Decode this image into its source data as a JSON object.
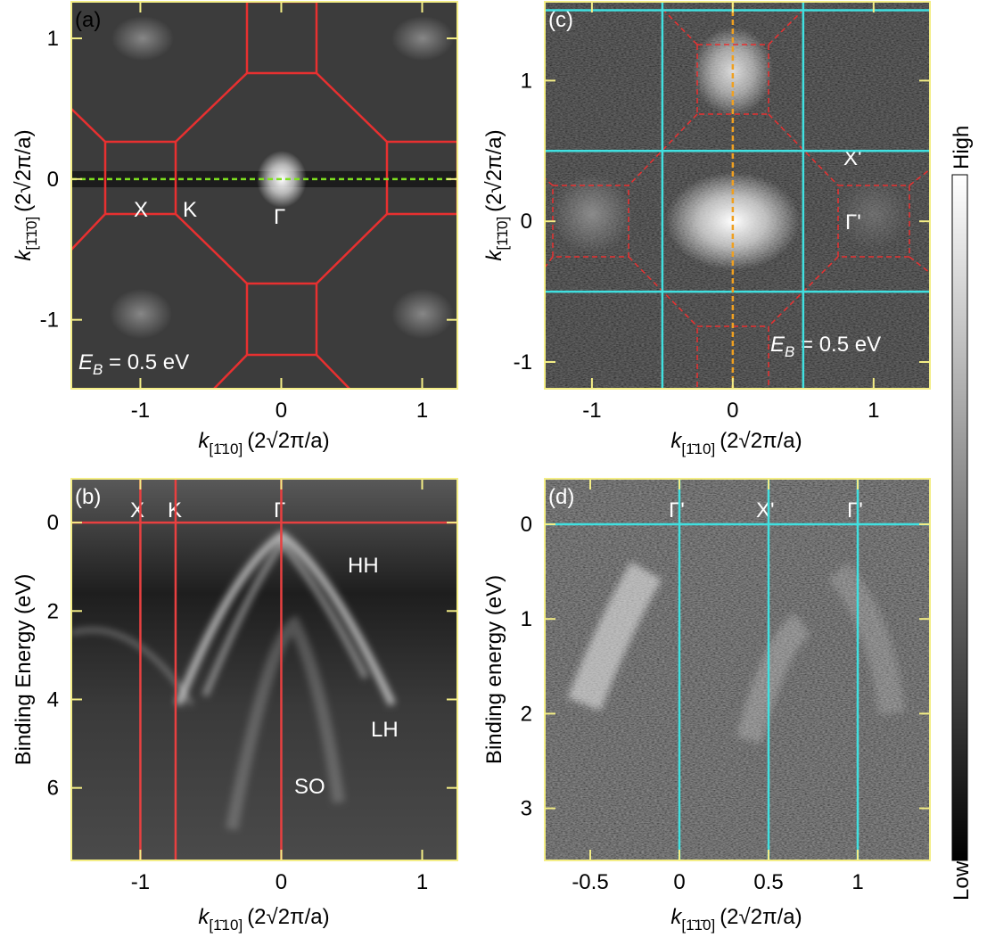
{
  "chart_data": [
    {
      "type": "image",
      "panel": "(a)",
      "xlabel": {
        "symbol": "k",
        "subscript": "[1̄10]",
        "unit": "(2√2π/a)"
      },
      "ylabel": {
        "symbol": "k",
        "subscript": "[1̄1̄0]",
        "unit": "(2√2π/a)"
      },
      "xlim": [
        -1.49,
        1.25
      ],
      "ylim": [
        -1.49,
        1.26
      ],
      "xticks": [
        -1,
        0,
        1
      ],
      "yticks": [
        -1,
        0,
        1
      ],
      "lines": [
        {
          "axis": "y",
          "at": 0,
          "color": "#7fe020",
          "dashed": true
        }
      ],
      "annotations": [
        "X",
        "K",
        "Γ"
      ],
      "energy": {
        "symbol": "E",
        "subscript": "B",
        "text": " = 0.5 eV"
      }
    },
    {
      "type": "image",
      "panel": "(b)",
      "xlabel": {
        "symbol": "k",
        "subscript": "[1̄10]",
        "unit": "(2√2π/a)"
      },
      "ylabel": "Binding Energy (eV)",
      "xlim": [
        -1.49,
        1.25
      ],
      "ylim": [
        7.64,
        -0.99
      ],
      "xticks": [
        -1,
        0,
        1
      ],
      "yticks": [
        0,
        2,
        4,
        6
      ],
      "lines": [
        {
          "axis": "x",
          "at": -1,
          "color": "#e84040",
          "dashed": false
        },
        {
          "axis": "x",
          "at": -0.75,
          "color": "#e84040",
          "dashed": false
        },
        {
          "axis": "x",
          "at": 0,
          "color": "#e84040",
          "dashed": false
        },
        {
          "axis": "y",
          "at": 0,
          "color": "#e84040",
          "dashed": false
        }
      ],
      "annotations": [
        "X",
        "K",
        "Γ",
        "HH",
        "LH",
        "SO"
      ]
    },
    {
      "type": "image",
      "panel": "(c)",
      "xlabel": {
        "symbol": "k",
        "subscript": "[1̄10]",
        "unit": "(2√2π/a)"
      },
      "ylabel": {
        "symbol": "k",
        "subscript": "[1̄1̄0]",
        "unit": "(2√2π/a)"
      },
      "xlim": [
        -1.335,
        1.4
      ],
      "ylim": [
        -1.19,
        1.56
      ],
      "xticks": [
        -1,
        0,
        1
      ],
      "yticks": [
        -1,
        0,
        1
      ],
      "lines": [
        {
          "axis": "x",
          "at": -0.5,
          "color": "#40e0e0",
          "dashed": false
        },
        {
          "axis": "x",
          "at": 0.5,
          "color": "#40e0e0",
          "dashed": false
        },
        {
          "axis": "y",
          "at": 1.5,
          "color": "#40e0e0",
          "dashed": false
        },
        {
          "axis": "y",
          "at": 0.5,
          "color": "#40e0e0",
          "dashed": false
        },
        {
          "axis": "y",
          "at": -0.5,
          "color": "#40e0e0",
          "dashed": false
        },
        {
          "axis": "x",
          "at": 0,
          "color": "#f0a020",
          "dashed": true
        }
      ],
      "annotations": [
        "X'",
        "Γ'"
      ],
      "energy": {
        "symbol": "E",
        "subscript": "B",
        "text": " = 0.5 eV"
      }
    },
    {
      "type": "image",
      "panel": "(d)",
      "xlabel": {
        "symbol": "k",
        "subscript": "[1̄1̄0]",
        "unit": "(2√2π/a)"
      },
      "ylabel": "Binding energy (eV)",
      "xlim": [
        -0.755,
        1.405
      ],
      "ylim": [
        3.55,
        -0.48
      ],
      "xticks": [
        -0.5,
        0,
        0.5,
        1
      ],
      "yticks": [
        0,
        1,
        2,
        3
      ],
      "lines": [
        {
          "axis": "x",
          "at": 0,
          "color": "#40e0e0",
          "dashed": false
        },
        {
          "axis": "x",
          "at": 0.5,
          "color": "#40e0e0",
          "dashed": false
        },
        {
          "axis": "x",
          "at": 1,
          "color": "#40e0e0",
          "dashed": false
        },
        {
          "axis": "y",
          "at": 0,
          "color": "#40e0e0",
          "dashed": false
        }
      ],
      "annotations": [
        "Γ'",
        "X'",
        "Γ'"
      ]
    }
  ],
  "colorbar": {
    "high": "High",
    "low": "Low"
  }
}
